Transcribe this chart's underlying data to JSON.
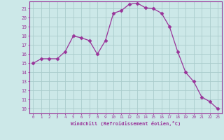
{
  "x": [
    0,
    1,
    2,
    3,
    4,
    5,
    6,
    7,
    8,
    9,
    10,
    11,
    12,
    13,
    14,
    15,
    16,
    17,
    18,
    19,
    20,
    21,
    22,
    23
  ],
  "y": [
    15,
    15.5,
    15.5,
    15.5,
    16.3,
    18,
    17.8,
    17.5,
    16,
    17.5,
    20.5,
    20.8,
    21.5,
    21.6,
    21.1,
    21,
    20.5,
    19,
    16.3,
    14,
    13,
    11.3,
    10.8,
    10
  ],
  "line_color": "#993399",
  "marker": "D",
  "marker_size": 2.5,
  "bg_color": "#cce8e8",
  "grid_color": "#aacccc",
  "xlabel": "Windchill (Refroidissement éolien,°C)",
  "xlim": [
    -0.5,
    23.5
  ],
  "ylim": [
    9.5,
    21.8
  ],
  "yticks": [
    10,
    11,
    12,
    13,
    14,
    15,
    16,
    17,
    18,
    19,
    20,
    21
  ],
  "xticks": [
    0,
    1,
    2,
    3,
    4,
    5,
    6,
    7,
    8,
    9,
    10,
    11,
    12,
    13,
    14,
    15,
    16,
    17,
    18,
    19,
    20,
    21,
    22,
    23
  ],
  "tick_color": "#993399",
  "label_color": "#993399",
  "spine_color": "#993399"
}
